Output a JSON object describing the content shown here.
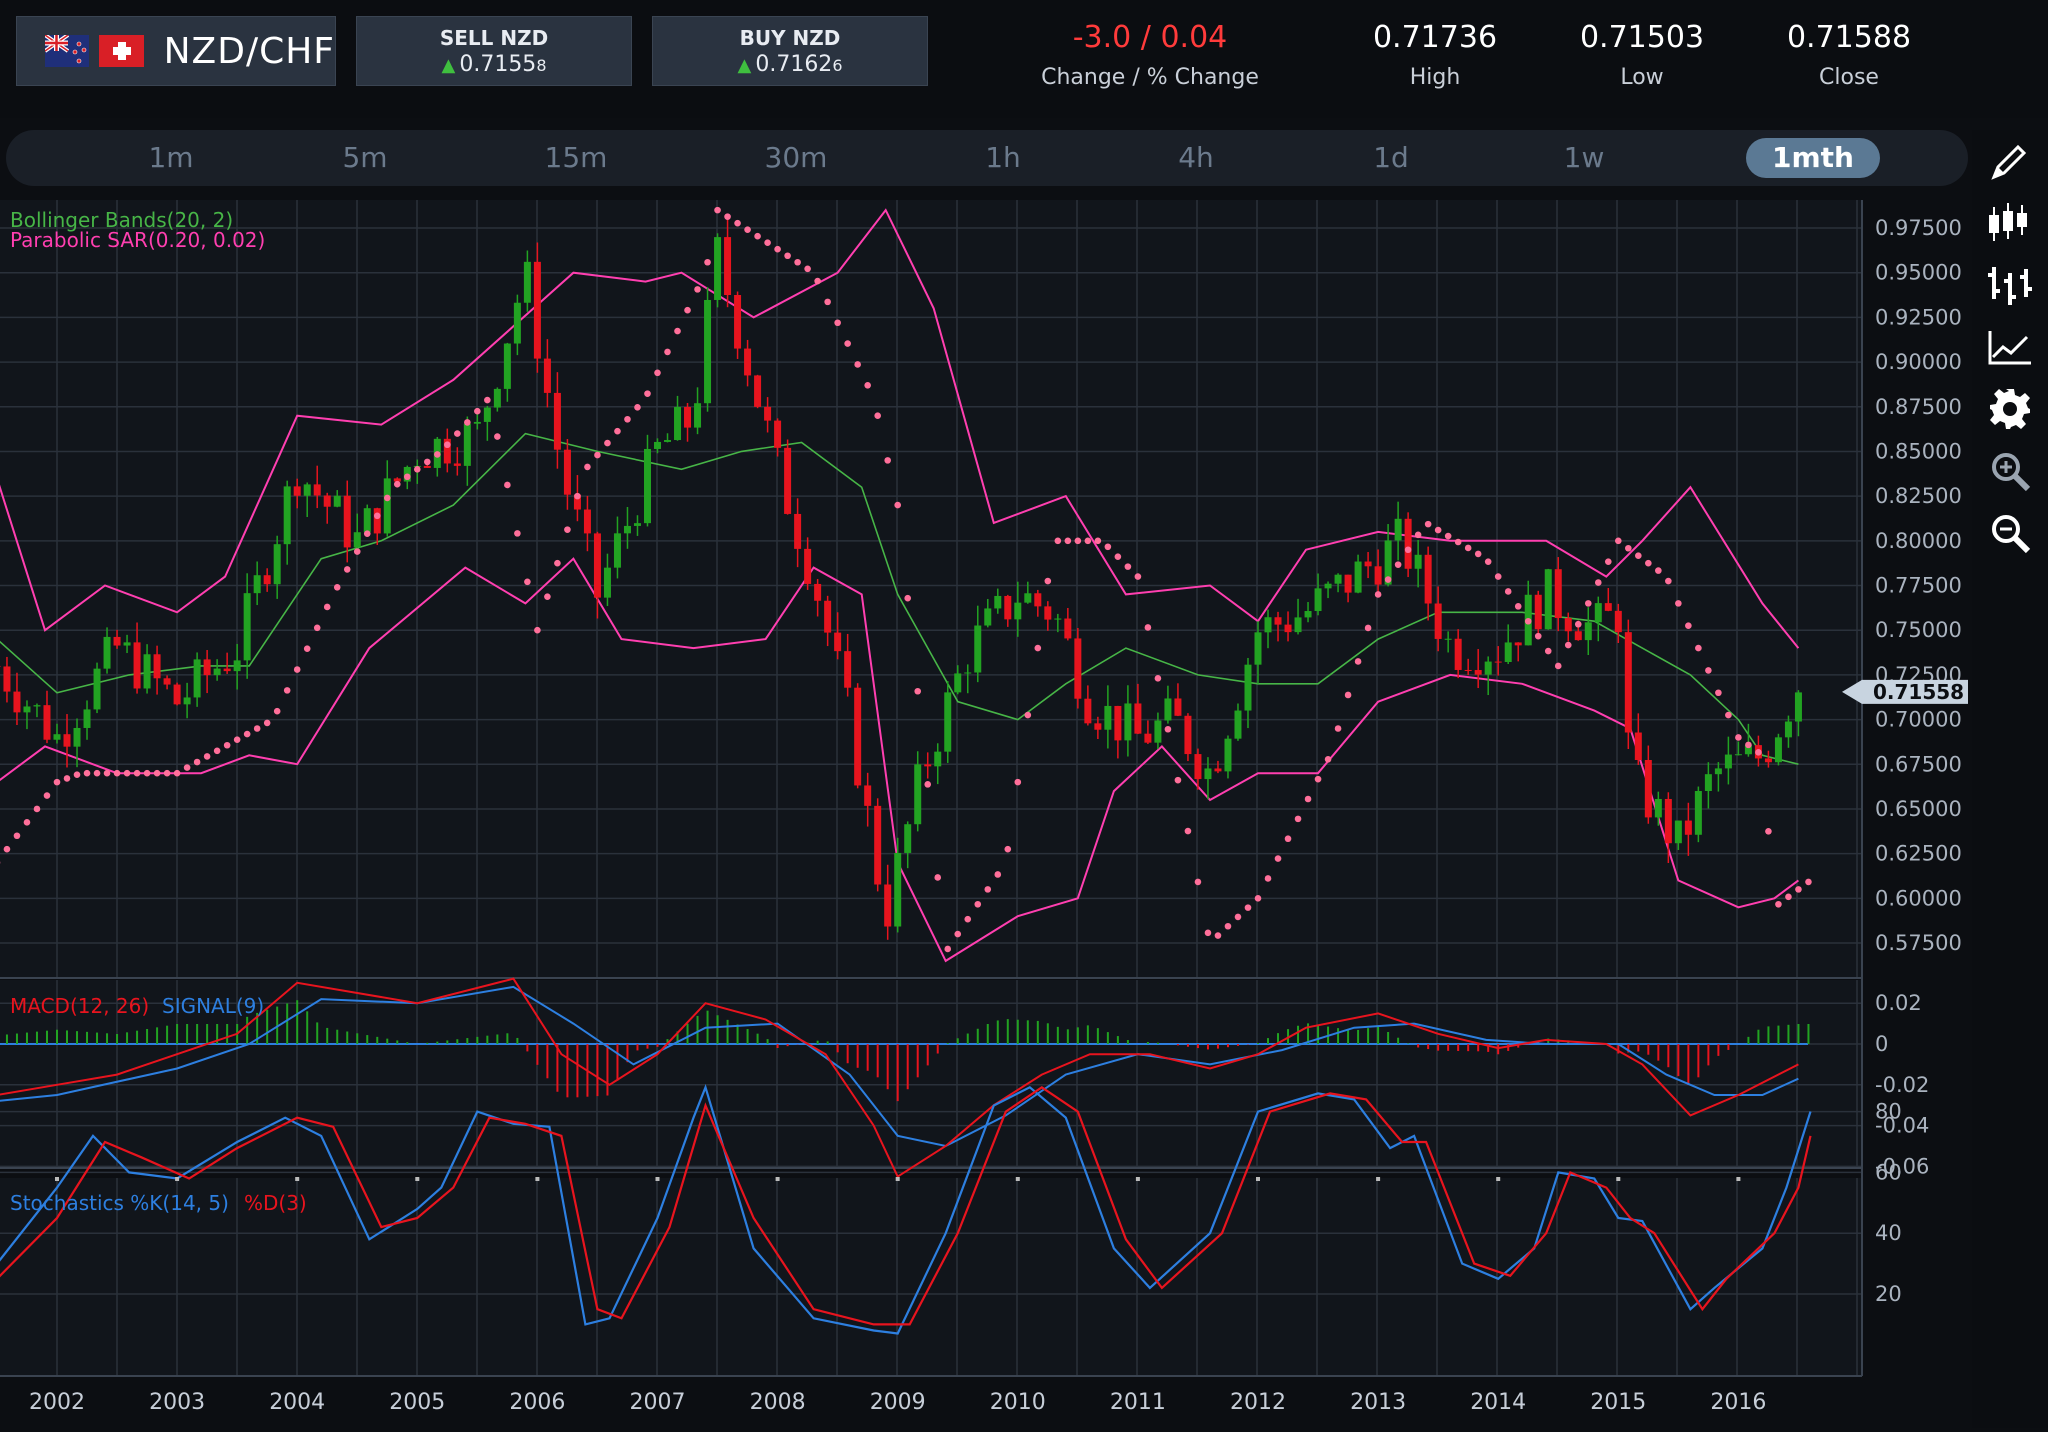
{
  "header": {
    "pair": "NZD/CHF",
    "sell_label": "SELL NZD",
    "sell_price_main": "0.7155",
    "sell_price_pip": "8",
    "buy_label": "BUY NZD",
    "buy_price_main": "0.7162",
    "buy_price_pip": "6",
    "change_value": "-3.0 / 0.04",
    "change_label": "Change / % Change",
    "high_value": "0.71736",
    "high_label": "High",
    "low_value": "0.71503",
    "low_label": "Low",
    "close_value": "0.71588",
    "close_label": "Close"
  },
  "timeframes": [
    {
      "label": "1m"
    },
    {
      "label": "5m"
    },
    {
      "label": "15m"
    },
    {
      "label": "30m"
    },
    {
      "label": "1h"
    },
    {
      "label": "4h"
    },
    {
      "label": "1d"
    },
    {
      "label": "1w"
    },
    {
      "label": "1mth",
      "active": true
    }
  ],
  "tools": [
    "pencil-icon",
    "candlestick-icon",
    "bar-chart-icon",
    "line-chart-icon",
    "gear-icon",
    "zoom-in-icon",
    "zoom-out-icon"
  ],
  "colors": {
    "up": "#22a322",
    "down": "#e8141e",
    "bb": "#ff3fb0",
    "mid": "#47b547",
    "sar": "#ff6f9a",
    "blue": "#2d7fe0",
    "red": "#e8141e"
  },
  "chart_data": {
    "type": "candlestick",
    "current_price": "0.71558",
    "legend_bb": "Bollinger Bands(20, 2)",
    "legend_sar": "Parabolic SAR(0.20, 0.02)",
    "legend_macd": "MACD(12, 26)",
    "legend_signal": "SIGNAL(9)",
    "legend_stoch_k": "Stochastics %K(14, 5)",
    "legend_stoch_d": "%D(3)",
    "ylim": [
      0.56,
      0.99
    ],
    "price_ticks": [
      "0.97500",
      "0.95000",
      "0.92500",
      "0.90000",
      "0.87500",
      "0.85000",
      "0.82500",
      "0.80000",
      "0.77500",
      "0.75000",
      "0.72500",
      "0.70000",
      "0.67500",
      "0.65000",
      "0.62500",
      "0.60000",
      "0.57500"
    ],
    "macd_ticks": [
      "0.02",
      "0",
      "-0.02",
      "-0.04",
      "-0.06"
    ],
    "stoch_ticks": [
      "80",
      "60",
      "40",
      "20"
    ],
    "years": [
      "2002",
      "2003",
      "2004",
      "2005",
      "2006",
      "2007",
      "2008",
      "2009",
      "2010",
      "2011",
      "2012",
      "2013",
      "2014",
      "2015",
      "2016"
    ],
    "close_path": [
      [
        2001.5,
        0.73
      ],
      [
        2002.0,
        0.69
      ],
      [
        2002.5,
        0.74
      ],
      [
        2003.0,
        0.71
      ],
      [
        2003.5,
        0.74
      ],
      [
        2004.0,
        0.84
      ],
      [
        2004.5,
        0.8
      ],
      [
        2005.0,
        0.85
      ],
      [
        2005.5,
        0.86
      ],
      [
        2005.9,
        0.95
      ],
      [
        2006.2,
        0.84
      ],
      [
        2006.5,
        0.77
      ],
      [
        2007.0,
        0.85
      ],
      [
        2007.3,
        0.87
      ],
      [
        2007.5,
        0.96
      ],
      [
        2008.0,
        0.84
      ],
      [
        2008.3,
        0.78
      ],
      [
        2008.6,
        0.7
      ],
      [
        2008.9,
        0.59
      ],
      [
        2009.2,
        0.67
      ],
      [
        2009.6,
        0.74
      ],
      [
        2010.0,
        0.77
      ],
      [
        2010.3,
        0.76
      ],
      [
        2010.6,
        0.71
      ],
      [
        2011.0,
        0.69
      ],
      [
        2011.3,
        0.7
      ],
      [
        2011.6,
        0.67
      ],
      [
        2012.0,
        0.75
      ],
      [
        2012.4,
        0.76
      ],
      [
        2012.8,
        0.78
      ],
      [
        2013.2,
        0.8
      ],
      [
        2013.6,
        0.74
      ],
      [
        2014.0,
        0.74
      ],
      [
        2014.4,
        0.77
      ],
      [
        2014.8,
        0.75
      ],
      [
        2015.0,
        0.76
      ],
      [
        2015.1,
        0.67
      ],
      [
        2015.5,
        0.63
      ],
      [
        2015.8,
        0.67
      ],
      [
        2016.2,
        0.68
      ],
      [
        2016.5,
        0.72
      ]
    ],
    "bb_upper": [
      [
        2001.5,
        0.835
      ],
      [
        2001.9,
        0.75
      ],
      [
        2002.4,
        0.775
      ],
      [
        2003.0,
        0.76
      ],
      [
        2003.4,
        0.78
      ],
      [
        2004.0,
        0.87
      ],
      [
        2004.7,
        0.865
      ],
      [
        2005.3,
        0.89
      ],
      [
        2005.8,
        0.92
      ],
      [
        2006.3,
        0.95
      ],
      [
        2006.9,
        0.945
      ],
      [
        2007.2,
        0.95
      ],
      [
        2007.8,
        0.925
      ],
      [
        2008.5,
        0.95
      ],
      [
        2008.9,
        0.985
      ],
      [
        2009.3,
        0.93
      ],
      [
        2009.8,
        0.81
      ],
      [
        2010.2,
        0.82
      ],
      [
        2010.4,
        0.825
      ],
      [
        2010.9,
        0.77
      ],
      [
        2011.6,
        0.775
      ],
      [
        2012.0,
        0.755
      ],
      [
        2012.4,
        0.795
      ],
      [
        2013.0,
        0.805
      ],
      [
        2013.6,
        0.8
      ],
      [
        2014.4,
        0.8
      ],
      [
        2014.9,
        0.78
      ],
      [
        2015.2,
        0.8
      ],
      [
        2015.6,
        0.83
      ],
      [
        2016.2,
        0.765
      ],
      [
        2016.5,
        0.74
      ]
    ],
    "bb_mid": [
      [
        2001.5,
        0.745
      ],
      [
        2002.0,
        0.715
      ],
      [
        2002.6,
        0.725
      ],
      [
        2003.2,
        0.73
      ],
      [
        2003.6,
        0.73
      ],
      [
        2004.2,
        0.79
      ],
      [
        2004.7,
        0.8
      ],
      [
        2005.3,
        0.82
      ],
      [
        2005.9,
        0.86
      ],
      [
        2006.5,
        0.85
      ],
      [
        2007.2,
        0.84
      ],
      [
        2007.7,
        0.85
      ],
      [
        2008.2,
        0.855
      ],
      [
        2008.7,
        0.83
      ],
      [
        2009.0,
        0.77
      ],
      [
        2009.5,
        0.71
      ],
      [
        2010.0,
        0.7
      ],
      [
        2010.4,
        0.72
      ],
      [
        2010.9,
        0.74
      ],
      [
        2011.5,
        0.725
      ],
      [
        2012.0,
        0.72
      ],
      [
        2012.5,
        0.72
      ],
      [
        2013.0,
        0.745
      ],
      [
        2013.5,
        0.76
      ],
      [
        2014.2,
        0.76
      ],
      [
        2014.8,
        0.755
      ],
      [
        2015.2,
        0.74
      ],
      [
        2015.6,
        0.725
      ],
      [
        2016.0,
        0.7
      ],
      [
        2016.2,
        0.68
      ],
      [
        2016.5,
        0.675
      ]
    ],
    "bb_lower": [
      [
        2001.5,
        0.665
      ],
      [
        2001.9,
        0.685
      ],
      [
        2002.5,
        0.67
      ],
      [
        2003.2,
        0.67
      ],
      [
        2003.6,
        0.68
      ],
      [
        2004.0,
        0.675
      ],
      [
        2004.6,
        0.74
      ],
      [
        2005.4,
        0.785
      ],
      [
        2005.9,
        0.765
      ],
      [
        2006.3,
        0.79
      ],
      [
        2006.7,
        0.745
      ],
      [
        2007.3,
        0.74
      ],
      [
        2007.9,
        0.745
      ],
      [
        2008.3,
        0.785
      ],
      [
        2008.7,
        0.77
      ],
      [
        2009.0,
        0.62
      ],
      [
        2009.4,
        0.565
      ],
      [
        2010.0,
        0.59
      ],
      [
        2010.5,
        0.6
      ],
      [
        2010.8,
        0.66
      ],
      [
        2011.2,
        0.685
      ],
      [
        2011.6,
        0.655
      ],
      [
        2012.0,
        0.67
      ],
      [
        2012.5,
        0.67
      ],
      [
        2013.0,
        0.71
      ],
      [
        2013.6,
        0.725
      ],
      [
        2014.2,
        0.72
      ],
      [
        2014.8,
        0.705
      ],
      [
        2015.1,
        0.695
      ],
      [
        2015.5,
        0.61
      ],
      [
        2016.0,
        0.595
      ],
      [
        2016.3,
        0.6
      ],
      [
        2016.5,
        0.61
      ]
    ],
    "sar_path": [
      [
        2001.5,
        0.62
      ],
      [
        2002.0,
        0.665
      ],
      [
        2002.2,
        0.67
      ],
      [
        2003.0,
        0.67
      ],
      [
        2003.8,
        0.7
      ],
      [
        2004.3,
        0.77
      ],
      [
        2004.8,
        0.83
      ],
      [
        2005.2,
        0.85
      ],
      [
        2005.6,
        0.88
      ],
      [
        2006.0,
        0.75
      ],
      [
        2006.4,
        0.84
      ],
      [
        2006.9,
        0.88
      ],
      [
        2007.4,
        0.95
      ],
      [
        2007.5,
        0.985
      ],
      [
        2008.3,
        0.95
      ],
      [
        2008.8,
        0.88
      ],
      [
        2009.0,
        0.82
      ],
      [
        2009.4,
        0.57
      ],
      [
        2009.9,
        0.62
      ],
      [
        2010.3,
        0.8
      ],
      [
        2010.7,
        0.8
      ],
      [
        2011.0,
        0.78
      ],
      [
        2011.6,
        0.575
      ],
      [
        2012.0,
        0.6
      ],
      [
        2012.6,
        0.68
      ],
      [
        2013.0,
        0.77
      ],
      [
        2013.4,
        0.81
      ],
      [
        2013.9,
        0.79
      ],
      [
        2014.5,
        0.73
      ],
      [
        2015.0,
        0.8
      ],
      [
        2015.4,
        0.78
      ],
      [
        2016.0,
        0.69
      ],
      [
        2016.2,
        0.68
      ],
      [
        2016.3,
        0.595
      ],
      [
        2016.6,
        0.61
      ]
    ],
    "macd_path": [
      [
        2001.5,
        -0.025
      ],
      [
        2002.0,
        -0.02
      ],
      [
        2002.5,
        -0.015
      ],
      [
        2003.5,
        0.005
      ],
      [
        2004.0,
        0.03
      ],
      [
        2004.5,
        0.025
      ],
      [
        2005.0,
        0.02
      ],
      [
        2005.8,
        0.032
      ],
      [
        2006.2,
        -0.005
      ],
      [
        2006.6,
        -0.02
      ],
      [
        2007.0,
        -0.005
      ],
      [
        2007.4,
        0.02
      ],
      [
        2007.9,
        0.012
      ],
      [
        2008.4,
        -0.005
      ],
      [
        2008.8,
        -0.04
      ],
      [
        2009.0,
        -0.065
      ],
      [
        2009.4,
        -0.05
      ],
      [
        2009.8,
        -0.03
      ],
      [
        2010.2,
        -0.015
      ],
      [
        2010.6,
        -0.005
      ],
      [
        2011.1,
        -0.005
      ],
      [
        2011.6,
        -0.012
      ],
      [
        2012.0,
        -0.005
      ],
      [
        2012.4,
        0.008
      ],
      [
        2013.0,
        0.015
      ],
      [
        2013.5,
        0.005
      ],
      [
        2014.0,
        -0.002
      ],
      [
        2014.4,
        0.002
      ],
      [
        2014.9,
        0.0
      ],
      [
        2015.2,
        -0.01
      ],
      [
        2015.6,
        -0.035
      ],
      [
        2016.0,
        -0.025
      ],
      [
        2016.5,
        -0.01
      ]
    ],
    "signal_path": [
      [
        2001.5,
        -0.028
      ],
      [
        2002.0,
        -0.025
      ],
      [
        2003.0,
        -0.012
      ],
      [
        2003.6,
        0.0
      ],
      [
        2004.2,
        0.022
      ],
      [
        2005.0,
        0.02
      ],
      [
        2005.8,
        0.028
      ],
      [
        2006.3,
        0.01
      ],
      [
        2006.8,
        -0.01
      ],
      [
        2007.4,
        0.008
      ],
      [
        2008.0,
        0.01
      ],
      [
        2008.6,
        -0.015
      ],
      [
        2009.0,
        -0.045
      ],
      [
        2009.4,
        -0.05
      ],
      [
        2009.9,
        -0.035
      ],
      [
        2010.4,
        -0.015
      ],
      [
        2011.0,
        -0.005
      ],
      [
        2011.6,
        -0.01
      ],
      [
        2012.2,
        -0.003
      ],
      [
        2012.8,
        0.008
      ],
      [
        2013.3,
        0.01
      ],
      [
        2013.9,
        0.002
      ],
      [
        2014.4,
        0.0
      ],
      [
        2015.0,
        0.0
      ],
      [
        2015.4,
        -0.015
      ],
      [
        2015.8,
        -0.025
      ],
      [
        2016.2,
        -0.025
      ],
      [
        2016.5,
        -0.017
      ]
    ],
    "stoch_k": [
      [
        2001.5,
        30
      ],
      [
        2002.0,
        55
      ],
      [
        2002.3,
        72
      ],
      [
        2002.6,
        60
      ],
      [
        2003.0,
        58
      ],
      [
        2003.5,
        70
      ],
      [
        2003.9,
        78
      ],
      [
        2004.2,
        72
      ],
      [
        2004.6,
        38
      ],
      [
        2005.0,
        48
      ],
      [
        2005.2,
        55
      ],
      [
        2005.5,
        80
      ],
      [
        2005.8,
        76
      ],
      [
        2006.1,
        75
      ],
      [
        2006.4,
        10
      ],
      [
        2006.6,
        12
      ],
      [
        2007.0,
        45
      ],
      [
        2007.3,
        78
      ],
      [
        2007.4,
        88
      ],
      [
        2007.8,
        35
      ],
      [
        2008.3,
        12
      ],
      [
        2008.8,
        8
      ],
      [
        2009.0,
        7
      ],
      [
        2009.4,
        40
      ],
      [
        2009.8,
        82
      ],
      [
        2010.1,
        88
      ],
      [
        2010.4,
        78
      ],
      [
        2010.8,
        35
      ],
      [
        2011.1,
        22
      ],
      [
        2011.6,
        40
      ],
      [
        2012.0,
        80
      ],
      [
        2012.5,
        86
      ],
      [
        2012.8,
        84
      ],
      [
        2013.1,
        68
      ],
      [
        2013.3,
        72
      ],
      [
        2013.7,
        30
      ],
      [
        2014.0,
        25
      ],
      [
        2014.3,
        35
      ],
      [
        2014.5,
        60
      ],
      [
        2014.8,
        58
      ],
      [
        2015.0,
        45
      ],
      [
        2015.2,
        44
      ],
      [
        2015.6,
        15
      ],
      [
        2015.8,
        22
      ],
      [
        2016.2,
        35
      ],
      [
        2016.4,
        55
      ],
      [
        2016.6,
        80
      ]
    ],
    "stoch_d": [
      [
        2001.5,
        25
      ],
      [
        2002.0,
        45
      ],
      [
        2002.4,
        70
      ],
      [
        2002.7,
        65
      ],
      [
        2003.1,
        58
      ],
      [
        2003.5,
        68
      ],
      [
        2004.0,
        78
      ],
      [
        2004.3,
        75
      ],
      [
        2004.7,
        42
      ],
      [
        2005.0,
        45
      ],
      [
        2005.3,
        55
      ],
      [
        2005.6,
        78
      ],
      [
        2005.9,
        76
      ],
      [
        2006.2,
        72
      ],
      [
        2006.5,
        15
      ],
      [
        2006.7,
        12
      ],
      [
        2007.1,
        42
      ],
      [
        2007.4,
        82
      ],
      [
        2007.8,
        45
      ],
      [
        2008.3,
        15
      ],
      [
        2008.8,
        10
      ],
      [
        2009.1,
        10
      ],
      [
        2009.5,
        40
      ],
      [
        2009.9,
        80
      ],
      [
        2010.2,
        88
      ],
      [
        2010.5,
        80
      ],
      [
        2010.9,
        38
      ],
      [
        2011.2,
        22
      ],
      [
        2011.7,
        40
      ],
      [
        2012.1,
        80
      ],
      [
        2012.6,
        86
      ],
      [
        2012.9,
        84
      ],
      [
        2013.2,
        70
      ],
      [
        2013.4,
        70
      ],
      [
        2013.8,
        30
      ],
      [
        2014.1,
        26
      ],
      [
        2014.4,
        40
      ],
      [
        2014.6,
        60
      ],
      [
        2014.9,
        55
      ],
      [
        2015.1,
        45
      ],
      [
        2015.3,
        40
      ],
      [
        2015.7,
        15
      ],
      [
        2015.9,
        25
      ],
      [
        2016.3,
        40
      ],
      [
        2016.5,
        55
      ],
      [
        2016.6,
        72
      ]
    ]
  }
}
